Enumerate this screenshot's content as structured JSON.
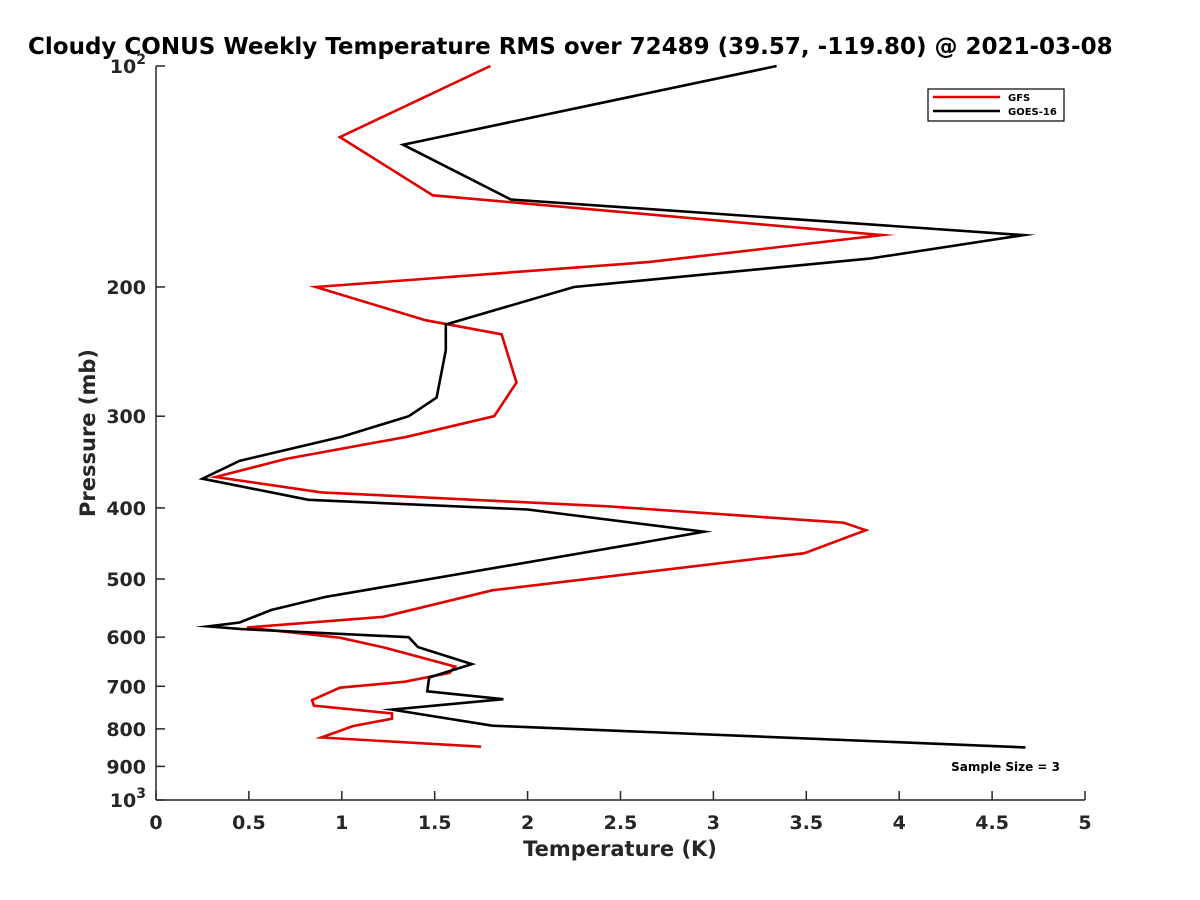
{
  "chart_data": {
    "type": "line",
    "title": "Cloudy CONUS Weekly Temperature RMS over 72489 (39.57, -119.80) @ 2021-03-08",
    "xlabel": "Temperature (K)",
    "ylabel": "Pressure (mb)",
    "xlim": [
      0,
      5
    ],
    "ylim": [
      100,
      1000
    ],
    "y_scale": "log",
    "y_reversed": true,
    "x_ticks": [
      "0",
      "0.5",
      "1",
      "1.5",
      "2",
      "2.5",
      "3",
      "3.5",
      "4",
      "4.5",
      "5"
    ],
    "y_ticks": [
      {
        "value": 100,
        "base": "10",
        "exp": "2"
      },
      {
        "value": 200,
        "label": "200"
      },
      {
        "value": 300,
        "label": "300"
      },
      {
        "value": 400,
        "label": "400"
      },
      {
        "value": 500,
        "label": "500"
      },
      {
        "value": 600,
        "label": "600"
      },
      {
        "value": 700,
        "label": "700"
      },
      {
        "value": 800,
        "label": "800"
      },
      {
        "value": 900,
        "label": "900"
      },
      {
        "value": 1000,
        "base": "10",
        "exp": "3"
      }
    ],
    "grid": false,
    "legend_position": "top-right",
    "annotation": "Sample Size = 3",
    "series": [
      {
        "name": "GFS",
        "color": "#e00000",
        "points": [
          [
            1.8,
            100
          ],
          [
            0.99,
            125
          ],
          [
            1.49,
            150
          ],
          [
            3.91,
            170
          ],
          [
            2.65,
            185
          ],
          [
            0.86,
            200
          ],
          [
            1.45,
            222
          ],
          [
            1.86,
            232
          ],
          [
            1.94,
            270
          ],
          [
            1.82,
            300
          ],
          [
            1.35,
            320
          ],
          [
            0.7,
            343
          ],
          [
            0.32,
            363
          ],
          [
            0.89,
            381
          ],
          [
            2.43,
            398
          ],
          [
            3.7,
            419
          ],
          [
            3.82,
            429
          ],
          [
            3.49,
            461
          ],
          [
            1.81,
            518
          ],
          [
            1.22,
            563
          ],
          [
            0.49,
            582
          ],
          [
            0.99,
            601
          ],
          [
            1.23,
            620
          ],
          [
            1.61,
            658
          ],
          [
            1.58,
            671
          ],
          [
            1.34,
            690
          ],
          [
            0.99,
            703
          ],
          [
            0.84,
            731
          ],
          [
            0.85,
            744
          ],
          [
            1.27,
            762
          ],
          [
            1.27,
            775
          ],
          [
            1.06,
            793
          ],
          [
            0.89,
            822
          ],
          [
            1.75,
            846
          ]
        ]
      },
      {
        "name": "GOES-16",
        "color": "#000000",
        "points": [
          [
            3.34,
            100
          ],
          [
            1.33,
            128
          ],
          [
            1.91,
            152
          ],
          [
            4.67,
            170
          ],
          [
            3.84,
            183
          ],
          [
            2.25,
            200
          ],
          [
            1.56,
            225
          ],
          [
            1.56,
            244
          ],
          [
            1.51,
            283
          ],
          [
            1.36,
            300
          ],
          [
            1.0,
            320
          ],
          [
            0.45,
            345
          ],
          [
            0.25,
            365
          ],
          [
            0.82,
            390
          ],
          [
            2.0,
            402
          ],
          [
            2.95,
            431
          ],
          [
            2.64,
            445
          ],
          [
            0.91,
            529
          ],
          [
            0.62,
            551
          ],
          [
            0.45,
            573
          ],
          [
            0.28,
            580
          ],
          [
            0.46,
            585
          ],
          [
            1.36,
            600
          ],
          [
            1.41,
            619
          ],
          [
            1.7,
            653
          ],
          [
            1.47,
            681
          ],
          [
            1.46,
            711
          ],
          [
            1.87,
            729
          ],
          [
            1.27,
            753
          ],
          [
            1.81,
            792
          ],
          [
            4.68,
            848
          ]
        ]
      }
    ]
  }
}
